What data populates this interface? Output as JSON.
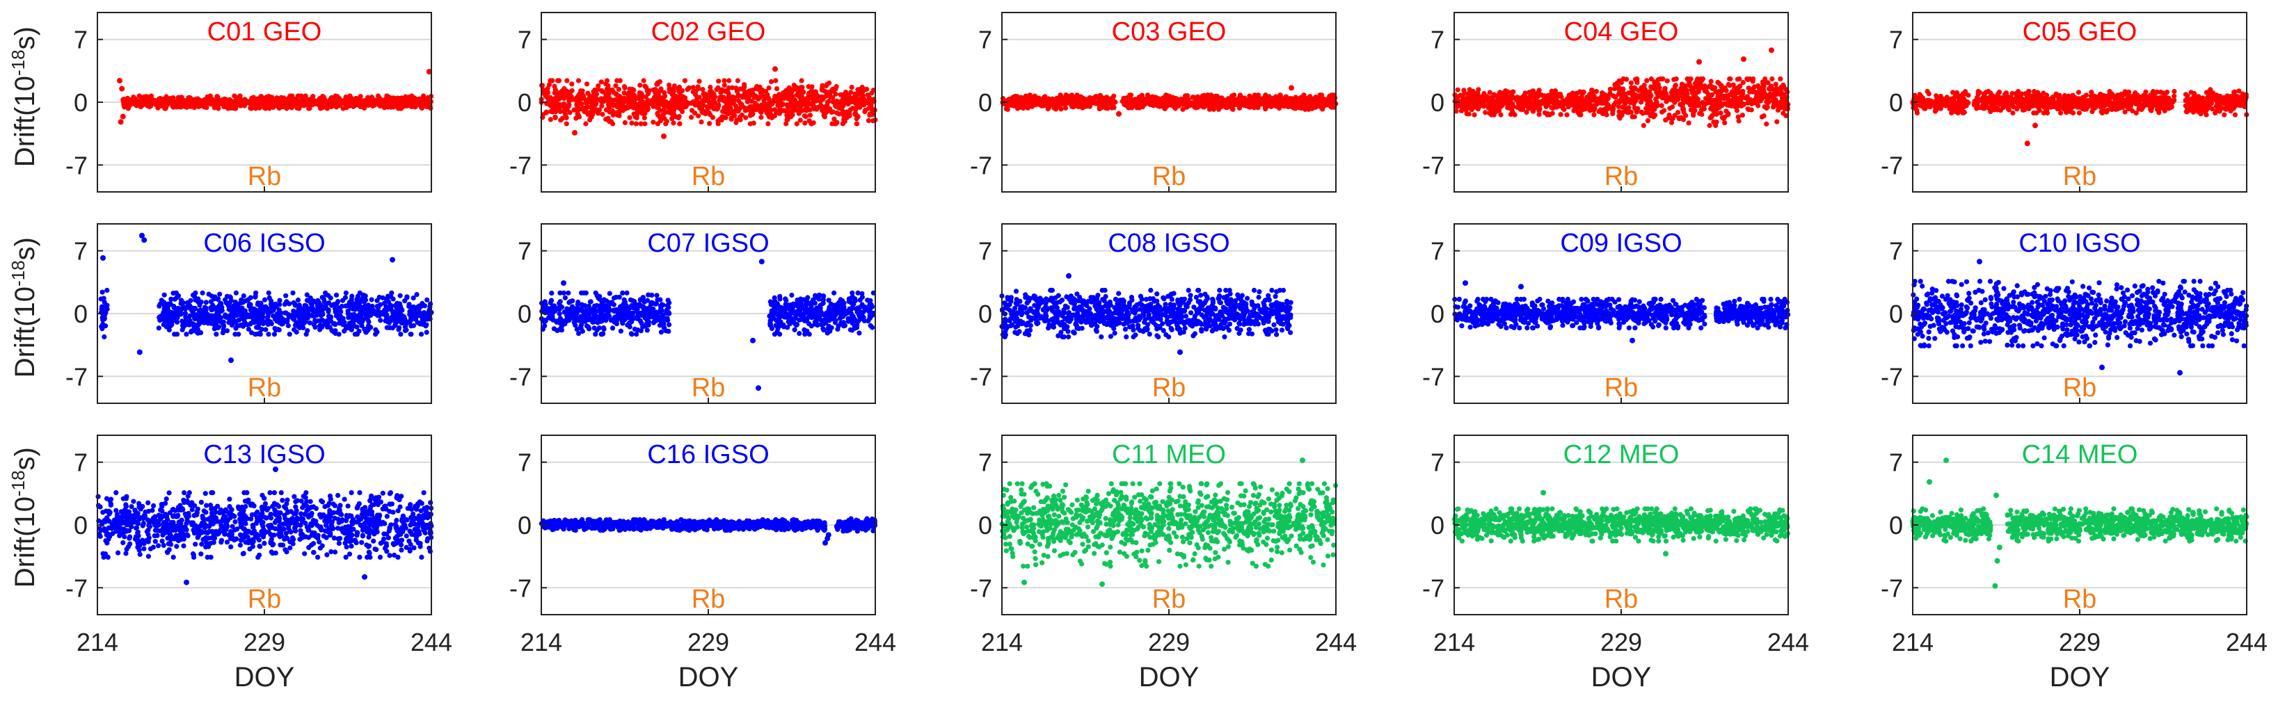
{
  "figure": {
    "ylabel_main": "Drift(10",
    "ylabel_exp": "-18",
    "ylabel_unit": "s)",
    "xlabel": "DOY"
  },
  "chart_data": [
    {
      "type": "scatter",
      "title": "C01 GEO",
      "clock": "Rb",
      "color": "#ff0000",
      "xlim": [
        214,
        244
      ],
      "ylim": [
        -10,
        10
      ],
      "xticks": [
        214,
        229,
        244
      ],
      "yticks": [
        7,
        0,
        -7
      ],
      "grid": true,
      "segments": [
        {
          "x": [
            216.2,
            244
          ],
          "center": 0,
          "spread": 0.7
        }
      ],
      "outliers": [
        [
          216.0,
          2.4
        ],
        [
          216.1,
          -2.2
        ],
        [
          216.3,
          -1.6
        ],
        [
          243.8,
          3.4
        ],
        [
          216.2,
          1.5
        ]
      ]
    },
    {
      "type": "scatter",
      "title": "C02 GEO",
      "clock": "Rb",
      "color": "#ff0000",
      "xlim": [
        214,
        244
      ],
      "ylim": [
        -10,
        10
      ],
      "xticks": [
        214,
        229,
        244
      ],
      "yticks": [
        7,
        0,
        -7
      ],
      "grid": true,
      "segments": [
        {
          "x": [
            214,
            244
          ],
          "center": 0,
          "spread": 2.4
        }
      ],
      "outliers": [
        [
          217,
          -3.4
        ],
        [
          225,
          -3.8
        ],
        [
          235,
          3.7
        ]
      ]
    },
    {
      "type": "scatter",
      "title": "C03 GEO",
      "clock": "Rb",
      "color": "#ff0000",
      "xlim": [
        214,
        244
      ],
      "ylim": [
        -10,
        10
      ],
      "xticks": [
        214,
        229,
        244
      ],
      "yticks": [
        7,
        0,
        -7
      ],
      "grid": true,
      "segments": [
        {
          "x": [
            214,
            224.2
          ],
          "center": 0,
          "spread": 0.8
        },
        {
          "x": [
            224.8,
            244
          ],
          "center": 0,
          "spread": 0.8
        }
      ],
      "outliers": [
        [
          224.5,
          -1.3
        ],
        [
          240,
          1.6
        ]
      ]
    },
    {
      "type": "scatter",
      "title": "C04 GEO",
      "clock": "Rb",
      "color": "#ff0000",
      "xlim": [
        214,
        244
      ],
      "ylim": [
        -10,
        10
      ],
      "xticks": [
        214,
        229,
        244
      ],
      "yticks": [
        7,
        0,
        -7
      ],
      "grid": true,
      "segments": [
        {
          "x": [
            214,
            228
          ],
          "center": 0,
          "spread": 1.4
        },
        {
          "x": [
            228,
            244
          ],
          "center": 0.4,
          "spread": 2.6
        }
      ],
      "outliers": [
        [
          242.5,
          5.8
        ],
        [
          240,
          4.8
        ],
        [
          236,
          4.5
        ]
      ]
    },
    {
      "type": "scatter",
      "title": "C05 GEO",
      "clock": "Rb",
      "color": "#ff0000",
      "xlim": [
        214,
        244
      ],
      "ylim": [
        -10,
        10
      ],
      "xticks": [
        214,
        229,
        244
      ],
      "yticks": [
        7,
        0,
        -7
      ],
      "grid": true,
      "segments": [
        {
          "x": [
            214,
            219
          ],
          "center": 0,
          "spread": 1.2
        },
        {
          "x": [
            219.5,
            237.5
          ],
          "center": 0,
          "spread": 1.2
        },
        {
          "x": [
            238.5,
            244
          ],
          "center": 0,
          "spread": 1.4
        }
      ],
      "outliers": [
        [
          224.3,
          -4.6
        ],
        [
          225,
          -2.6
        ]
      ]
    },
    {
      "type": "scatter",
      "title": "C06 IGSO",
      "clock": "Rb",
      "color": "#0000ff",
      "xlim": [
        214,
        244
      ],
      "ylim": [
        -10,
        10
      ],
      "xticks": [
        214,
        229,
        244
      ],
      "yticks": [
        7,
        0,
        -7
      ],
      "grid": true,
      "segments": [
        {
          "x": [
            214.3,
            214.9
          ],
          "center": 0,
          "spread": 2.6
        },
        {
          "x": [
            219.5,
            244
          ],
          "center": 0,
          "spread": 2.3
        }
      ],
      "outliers": [
        [
          214.5,
          6.2
        ],
        [
          218,
          8.7
        ],
        [
          218.2,
          8.2
        ],
        [
          217.8,
          -4.3
        ],
        [
          240.5,
          6.0
        ],
        [
          226,
          -5.2
        ]
      ]
    },
    {
      "type": "scatter",
      "title": "C07 IGSO",
      "clock": "Rb",
      "color": "#0000ff",
      "xlim": [
        214,
        244
      ],
      "ylim": [
        -10,
        10
      ],
      "xticks": [
        214,
        229,
        244
      ],
      "yticks": [
        7,
        0,
        -7
      ],
      "grid": true,
      "segments": [
        {
          "x": [
            214,
            225.5
          ],
          "center": 0,
          "spread": 2.3
        },
        {
          "x": [
            234.5,
            244
          ],
          "center": 0,
          "spread": 2.3
        }
      ],
      "outliers": [
        [
          233.5,
          -8.3
        ],
        [
          233.8,
          5.8
        ],
        [
          233,
          -3.0
        ],
        [
          216,
          3.4
        ]
      ]
    },
    {
      "type": "scatter",
      "title": "C08 IGSO",
      "clock": "Rb",
      "color": "#0000ff",
      "xlim": [
        214,
        244
      ],
      "ylim": [
        -10,
        10
      ],
      "xticks": [
        214,
        229,
        244
      ],
      "yticks": [
        7,
        0,
        -7
      ],
      "grid": true,
      "segments": [
        {
          "x": [
            214,
            240
          ],
          "center": 0,
          "spread": 2.6
        }
      ],
      "outliers": [
        [
          220,
          4.2
        ],
        [
          230,
          -4.3
        ]
      ]
    },
    {
      "type": "scatter",
      "title": "C09 IGSO",
      "clock": "Rb",
      "color": "#0000ff",
      "xlim": [
        214,
        244
      ],
      "ylim": [
        -10,
        10
      ],
      "xticks": [
        214,
        229,
        244
      ],
      "yticks": [
        7,
        0,
        -7
      ],
      "grid": true,
      "segments": [
        {
          "x": [
            214,
            236.5
          ],
          "center": 0,
          "spread": 1.6
        },
        {
          "x": [
            237.5,
            244
          ],
          "center": 0,
          "spread": 1.6
        }
      ],
      "outliers": [
        [
          215,
          3.4
        ],
        [
          220,
          3.0
        ],
        [
          230,
          -3.0
        ]
      ]
    },
    {
      "type": "scatter",
      "title": "C10 IGSO",
      "clock": "Rb",
      "color": "#0000ff",
      "xlim": [
        214,
        244
      ],
      "ylim": [
        -10,
        10
      ],
      "xticks": [
        214,
        229,
        244
      ],
      "yticks": [
        7,
        0,
        -7
      ],
      "grid": true,
      "segments": [
        {
          "x": [
            214,
            244
          ],
          "center": 0,
          "spread": 3.6
        }
      ],
      "outliers": [
        [
          238,
          -6.6
        ],
        [
          231,
          -6.0
        ],
        [
          220,
          5.8
        ]
      ]
    },
    {
      "type": "scatter",
      "title": "C13 IGSO",
      "clock": "Rb",
      "color": "#0000ff",
      "xlim": [
        214,
        244
      ],
      "ylim": [
        -10,
        10
      ],
      "xticks": [
        214,
        229,
        244
      ],
      "yticks": [
        7,
        0,
        -7
      ],
      "grid": true,
      "segments": [
        {
          "x": [
            214,
            244
          ],
          "center": 0,
          "spread": 3.6
        }
      ],
      "outliers": [
        [
          222,
          -6.4
        ],
        [
          230,
          6.2
        ],
        [
          238,
          -5.8
        ]
      ]
    },
    {
      "type": "scatter",
      "title": "C16 IGSO",
      "clock": "Rb",
      "color": "#0000ff",
      "xlim": [
        214,
        244
      ],
      "ylim": [
        -10,
        10
      ],
      "xticks": [
        214,
        229,
        244
      ],
      "yticks": [
        7,
        0,
        -7
      ],
      "grid": true,
      "segments": [
        {
          "x": [
            214,
            239.5
          ],
          "center": 0,
          "spread": 0.6
        },
        {
          "x": [
            240.5,
            244
          ],
          "center": 0,
          "spread": 0.7
        }
      ],
      "outliers": [
        [
          239.5,
          -2.0
        ],
        [
          239.7,
          -1.5
        ],
        [
          239.8,
          -1.1
        ]
      ]
    },
    {
      "type": "scatter",
      "title": "C11 MEO",
      "clock": "Rb",
      "color": "#11c45a",
      "xlim": [
        214,
        244
      ],
      "ylim": [
        -10,
        10
      ],
      "xticks": [
        214,
        229,
        244
      ],
      "yticks": [
        7,
        0,
        -7
      ],
      "grid": true,
      "segments": [
        {
          "x": [
            214,
            244
          ],
          "center": 0.5,
          "spread": 4.6
        }
      ],
      "outliers": [
        [
          216,
          -6.4
        ],
        [
          223,
          -6.6
        ],
        [
          241,
          7.2
        ]
      ]
    },
    {
      "type": "scatter",
      "title": "C12 MEO",
      "clock": "Rb",
      "color": "#11c45a",
      "xlim": [
        214,
        244
      ],
      "ylim": [
        -10,
        10
      ],
      "xticks": [
        214,
        229,
        244
      ],
      "yticks": [
        7,
        0,
        -7
      ],
      "grid": true,
      "segments": [
        {
          "x": [
            214,
            244
          ],
          "center": 0,
          "spread": 1.8
        }
      ],
      "outliers": [
        [
          222,
          3.6
        ],
        [
          233,
          -3.2
        ]
      ]
    },
    {
      "type": "scatter",
      "title": "C14 MEO",
      "clock": "Rb",
      "color": "#11c45a",
      "xlim": [
        214,
        244
      ],
      "ylim": [
        -10,
        10
      ],
      "xticks": [
        214,
        229,
        244
      ],
      "yticks": [
        7,
        0,
        -7
      ],
      "grid": true,
      "segments": [
        {
          "x": [
            214,
            221
          ],
          "center": 0,
          "spread": 1.8
        },
        {
          "x": [
            222.5,
            244
          ],
          "center": 0,
          "spread": 1.8
        }
      ],
      "outliers": [
        [
          217,
          7.2
        ],
        [
          215.5,
          4.8
        ],
        [
          221.4,
          -6.8
        ],
        [
          221.6,
          -4.0
        ],
        [
          221.8,
          -2.5
        ],
        [
          221.5,
          3.3
        ]
      ]
    }
  ]
}
